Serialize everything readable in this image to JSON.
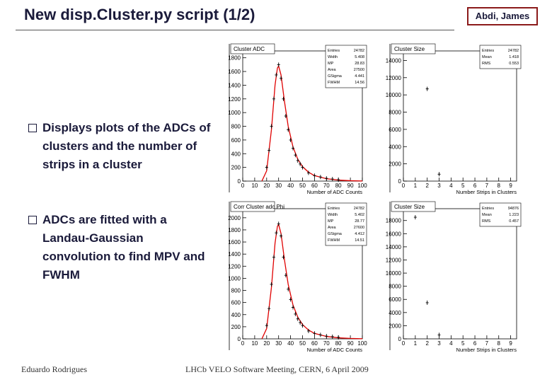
{
  "header": {
    "title": "New disp.Cluster.py script (1/2)",
    "author_box": "Abdi, James"
  },
  "bullets": [
    "Displays plots of the ADCs of clusters and the number of strips in a cluster",
    "ADCs are fitted with a Landau-Gaussian convolution to find MPV and FWHM"
  ],
  "plots": [
    {
      "title": "Cluster ADC",
      "xlabel": "Number of ADC Counts",
      "xlim": [
        0,
        100
      ],
      "xticks": [
        0,
        10,
        20,
        30,
        40,
        50,
        60,
        70,
        80,
        90,
        100
      ],
      "ylim": [
        0,
        1900
      ],
      "yticks": [
        0,
        200,
        400,
        600,
        800,
        1000,
        1200,
        1400,
        1600,
        1800
      ],
      "points": {
        "x": [
          20,
          22,
          24,
          26,
          28,
          30,
          32,
          34,
          36,
          38,
          40,
          42,
          44,
          46,
          48,
          50,
          55,
          60,
          65,
          70,
          75,
          80
        ],
        "y": [
          200,
          450,
          800,
          1200,
          1550,
          1700,
          1500,
          1200,
          950,
          750,
          600,
          480,
          380,
          300,
          250,
          200,
          120,
          80,
          60,
          40,
          30,
          20
        ]
      },
      "fit": {
        "x": [
          16,
          20,
          24,
          27,
          29,
          30,
          32,
          35,
          38,
          42,
          46,
          50,
          55,
          60,
          70,
          80,
          90,
          100
        ],
        "y": [
          0,
          150,
          750,
          1400,
          1650,
          1680,
          1550,
          1150,
          800,
          500,
          320,
          210,
          130,
          80,
          35,
          15,
          6,
          2
        ]
      },
      "fit_color": "#e00000",
      "stats": [
        {
          "name": "Entries",
          "value": 24782
        },
        {
          "name": "Width",
          "value": 5.408
        },
        {
          "name": "MP",
          "value": 28.83
        },
        {
          "name": "Area",
          "value": 27500
        },
        {
          "name": "GSigma",
          "value": 4.441
        },
        {
          "name": "FWHM",
          "value": 14.56
        }
      ]
    },
    {
      "title": "Cluster Size",
      "xlabel": "Number Strips in Clusters",
      "xlim": [
        0,
        9.5
      ],
      "xticks": [
        0,
        1,
        2,
        3,
        4,
        5,
        6,
        7,
        8,
        9
      ],
      "ylim": [
        0,
        15100
      ],
      "yticks": [
        0,
        2000,
        4000,
        6000,
        8000,
        10000,
        12000,
        14000
      ],
      "points": {
        "x": [
          2,
          3
        ],
        "y": [
          10700,
          800
        ]
      },
      "stats": [
        {
          "name": "Entries",
          "value": 24782
        },
        {
          "name": "Mean",
          "value": 1.418
        },
        {
          "name": "RMS",
          "value": 0.553
        }
      ]
    },
    {
      "title": "Corr Cluster adc Phi",
      "xlabel": "Number of ADC Counts",
      "xlim": [
        0,
        100
      ],
      "xticks": [
        0,
        10,
        20,
        30,
        40,
        50,
        60,
        70,
        80,
        90,
        100
      ],
      "ylim": [
        0,
        2150
      ],
      "yticks": [
        0,
        200,
        400,
        600,
        800,
        1000,
        1200,
        1400,
        1600,
        1800,
        2000
      ],
      "points": {
        "x": [
          20,
          22,
          24,
          26,
          28,
          30,
          32,
          34,
          36,
          38,
          40,
          42,
          44,
          46,
          48,
          50,
          55,
          60,
          65,
          70,
          75,
          80
        ],
        "y": [
          220,
          500,
          900,
          1350,
          1750,
          1900,
          1700,
          1350,
          1050,
          820,
          650,
          520,
          410,
          330,
          270,
          220,
          130,
          90,
          65,
          45,
          35,
          25
        ]
      },
      "fit": {
        "x": [
          16,
          20,
          24,
          27,
          29,
          30,
          32,
          35,
          38,
          42,
          46,
          50,
          55,
          60,
          70,
          80,
          90,
          100
        ],
        "y": [
          0,
          170,
          850,
          1580,
          1860,
          1890,
          1740,
          1290,
          900,
          560,
          360,
          235,
          145,
          90,
          40,
          17,
          7,
          2
        ]
      },
      "fit_color": "#e00000",
      "stats": [
        {
          "name": "Entries",
          "value": 24782
        },
        {
          "name": "Width",
          "value": 5.402
        },
        {
          "name": "MP",
          "value": 28.77
        },
        {
          "name": "Area",
          "value": 27600
        },
        {
          "name": "GSigma",
          "value": 4.412
        },
        {
          "name": "FWHM",
          "value": 14.51
        }
      ]
    },
    {
      "title": "Cluster Size",
      "xlabel": "Number Strips in Clusters",
      "xlim": [
        0,
        9.5
      ],
      "xticks": [
        0,
        1,
        2,
        3,
        4,
        5,
        6,
        7,
        8,
        9
      ],
      "ylim": [
        0,
        19800
      ],
      "yticks": [
        0,
        2000,
        4000,
        6000,
        8000,
        10000,
        12000,
        14000,
        16000,
        18000
      ],
      "points": {
        "x": [
          1,
          2,
          3
        ],
        "y": [
          18500,
          5500,
          600
        ]
      },
      "stats": [
        {
          "name": "Entries",
          "value": 94876
        },
        {
          "name": "Mean",
          "value": 1.223
        },
        {
          "name": "RMS",
          "value": 0.457
        }
      ]
    }
  ],
  "footer": {
    "left": "Eduardo Rodrigues",
    "center": "LHCb VELO Software Meeting, CERN, 6 April 2009"
  }
}
